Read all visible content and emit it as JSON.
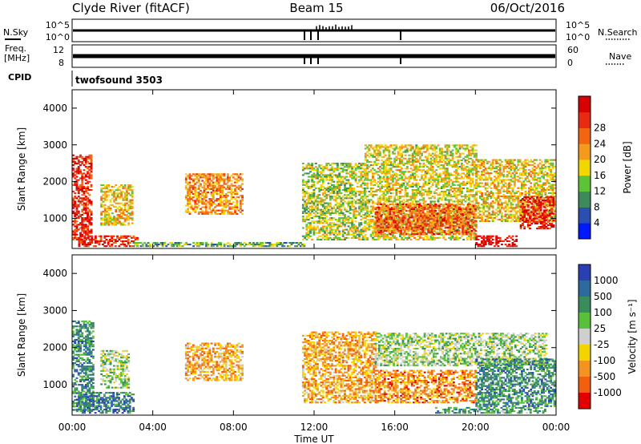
{
  "header": {
    "station": "Clyde River (fitACF)",
    "beam": "Beam 15",
    "date": "06/Oct/2016"
  },
  "meta_panels": {
    "nsky_label": "N.Sky",
    "nsearch_label": "N.Search",
    "noise_ticks": [
      "10^5",
      "10^0"
    ],
    "freq_label_1": "Freq.",
    "freq_label_2": "[MHz]",
    "freq_ticks": [
      "12",
      "8"
    ],
    "nave_label": "Nave",
    "nave_ticks": [
      "60",
      "0"
    ],
    "cpid_label": "CPID",
    "cpid_value": "twofsound 3503"
  },
  "chart_data": [
    {
      "type": "heatmap",
      "name_printed": "Power [dB]",
      "ylabel": "Slant Range [km]",
      "xlabel": "Time UT",
      "x_ticks": [
        "00:00",
        "04:00",
        "08:00",
        "12:00",
        "16:00",
        "20:00",
        "00:00"
      ],
      "x_range_hours": [
        0,
        24
      ],
      "y_ticks": [
        1000,
        2000,
        3000,
        4000
      ],
      "y_range_km": [
        180,
        4500
      ],
      "colorbar": {
        "label": "Power [dB]",
        "ticks": [
          "4",
          "8",
          "12",
          "16",
          "20",
          "24",
          "28"
        ],
        "colors": [
          "#0019ff",
          "#2b4fb0",
          "#3f8a5a",
          "#5cc337",
          "#f2d600",
          "#f59a1c",
          "#f4650f",
          "#e82a12",
          "#d80000"
        ]
      },
      "regions": [
        {
          "t0": 0.0,
          "t1": 0.9,
          "r0": 400,
          "r1": 2700,
          "level": 0.85
        },
        {
          "t0": 0.3,
          "t1": 3.2,
          "r0": 220,
          "r1": 500,
          "level": 0.85
        },
        {
          "t0": 1.4,
          "t1": 3.0,
          "r0": 800,
          "r1": 1900,
          "level": 0.55
        },
        {
          "t0": 5.6,
          "t1": 8.4,
          "r0": 1100,
          "r1": 2200,
          "level": 0.65
        },
        {
          "t0": 3.0,
          "t1": 11.5,
          "r0": 220,
          "r1": 330,
          "level": 0.35
        },
        {
          "t0": 11.4,
          "t1": 14.5,
          "r0": 400,
          "r1": 2500,
          "level": 0.45
        },
        {
          "t0": 14.5,
          "t1": 20.0,
          "r0": 400,
          "r1": 3000,
          "level": 0.5
        },
        {
          "t0": 15.0,
          "t1": 20.0,
          "r0": 550,
          "r1": 1400,
          "level": 0.75
        },
        {
          "t0": 20.0,
          "t1": 23.9,
          "r0": 900,
          "r1": 2600,
          "level": 0.55
        },
        {
          "t0": 22.2,
          "t1": 23.9,
          "r0": 700,
          "r1": 1600,
          "level": 0.9
        },
        {
          "t0": 20.0,
          "t1": 22.0,
          "r0": 220,
          "r1": 500,
          "level": 0.95
        }
      ]
    },
    {
      "type": "heatmap",
      "ylabel": "Slant Range [km]",
      "xlabel": "Time UT",
      "x_ticks": [
        "00:00",
        "04:00",
        "08:00",
        "12:00",
        "16:00",
        "20:00",
        "00:00"
      ],
      "x_range_hours": [
        0,
        24
      ],
      "y_ticks": [
        1000,
        2000,
        3000,
        4000
      ],
      "y_range_km": [
        180,
        4500
      ],
      "colorbar": {
        "label": "Velocity [m s⁻¹]",
        "ticks": [
          "1000",
          "500",
          "100",
          "25",
          "-25",
          "-100",
          "-500",
          "-1000"
        ],
        "colors": [
          "#2b3fb5",
          "#2f6a9e",
          "#3a8c5c",
          "#58c03a",
          "#cfcfcf",
          "#f3d400",
          "#f59320",
          "#f2600e",
          "#e40000"
        ]
      },
      "regions": [
        {
          "t0": 0.0,
          "t1": 1.0,
          "r0": 300,
          "r1": 2700,
          "level": 0.25
        },
        {
          "t0": 0.2,
          "t1": 3.0,
          "r0": 220,
          "r1": 800,
          "level": 0.2
        },
        {
          "t0": 1.4,
          "t1": 2.8,
          "r0": 900,
          "r1": 1900,
          "level": 0.45
        },
        {
          "t0": 5.6,
          "t1": 8.4,
          "r0": 1100,
          "r1": 2100,
          "level": 0.68
        },
        {
          "t0": 11.4,
          "t1": 15.0,
          "r0": 500,
          "r1": 2400,
          "level": 0.7
        },
        {
          "t0": 15.0,
          "t1": 20.0,
          "r0": 500,
          "r1": 1400,
          "level": 0.75
        },
        {
          "t0": 15.0,
          "t1": 23.5,
          "r0": 1500,
          "r1": 2400,
          "level": 0.45
        },
        {
          "t0": 20.0,
          "t1": 23.9,
          "r0": 400,
          "r1": 1700,
          "level": 0.25
        },
        {
          "t0": 18.0,
          "t1": 23.5,
          "r0": 220,
          "r1": 400,
          "level": 0.3
        }
      ]
    }
  ]
}
